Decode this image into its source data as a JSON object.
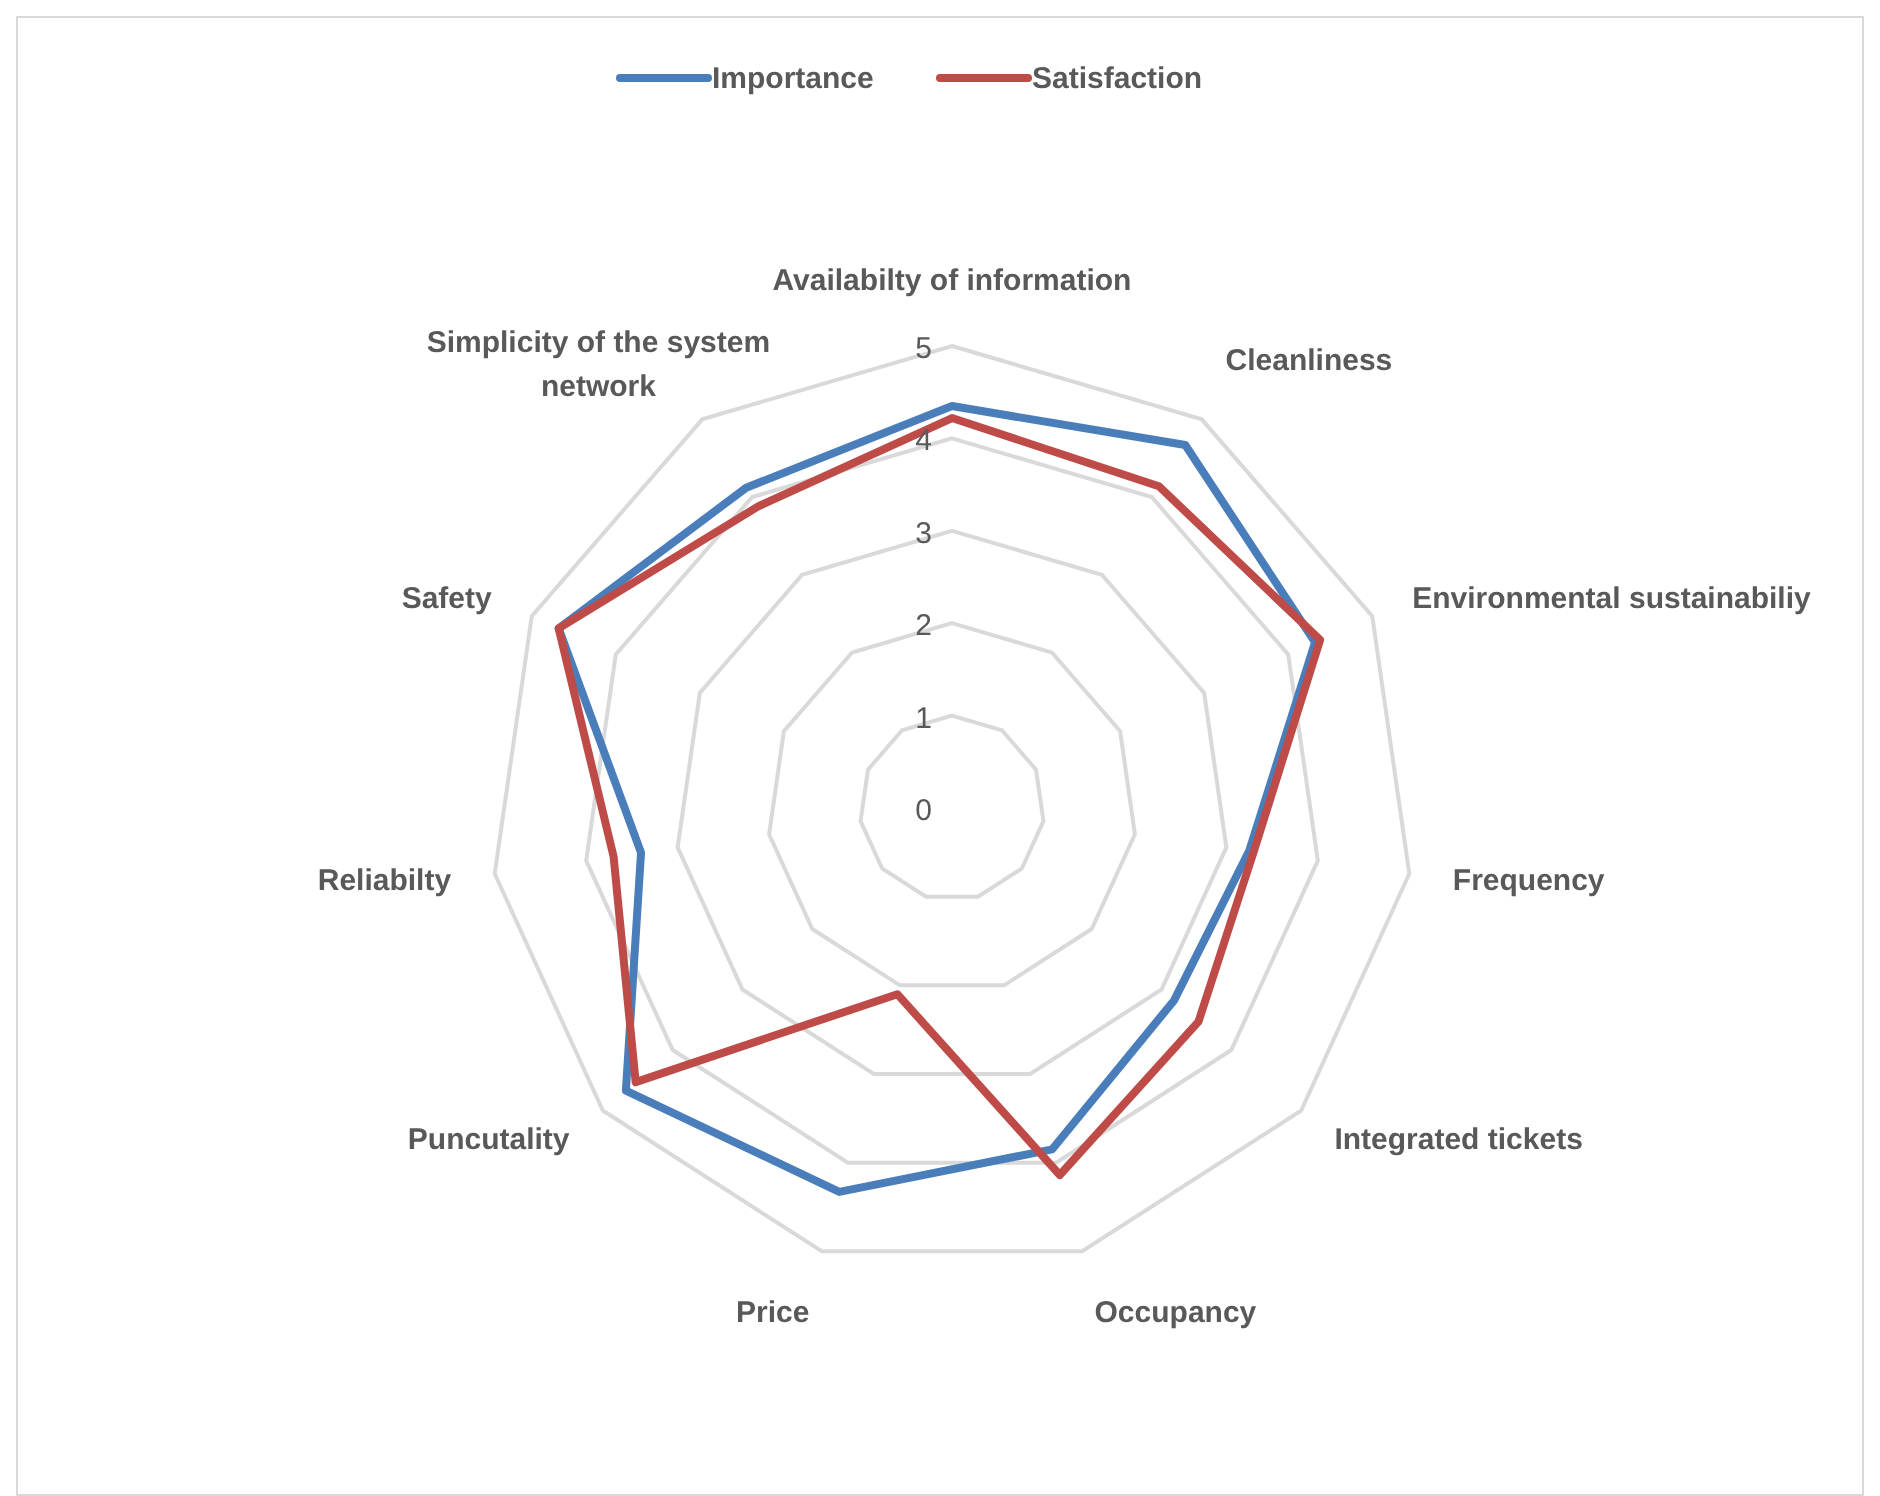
{
  "chart_data": {
    "type": "radar",
    "categories": [
      "Availabilty of information",
      "Cleanliness",
      "Environmental sustainabiliy",
      "Frequency",
      "Integrated tickets",
      "Occupancy",
      "Price",
      "Puncutality",
      "Reliabilty",
      "Safety",
      "Simplicity of the system network"
    ],
    "series": [
      {
        "name": "Importance",
        "color": "#4a7ebb",
        "values": [
          4.35,
          4.67,
          4.32,
          3.25,
          3.18,
          3.85,
          4.33,
          4.67,
          3.4,
          4.68,
          4.12
        ]
      },
      {
        "name": "Satisfaction",
        "color": "#be4b48",
        "values": [
          4.22,
          4.14,
          4.38,
          3.3,
          3.53,
          4.14,
          2.1,
          4.53,
          3.7,
          4.68,
          3.88
        ]
      }
    ],
    "ylim": [
      0,
      5
    ],
    "yticks": [
      0,
      1,
      2,
      3,
      4,
      5
    ],
    "grid": true,
    "legend": "top",
    "line_style": "solid",
    "marker": "none"
  }
}
